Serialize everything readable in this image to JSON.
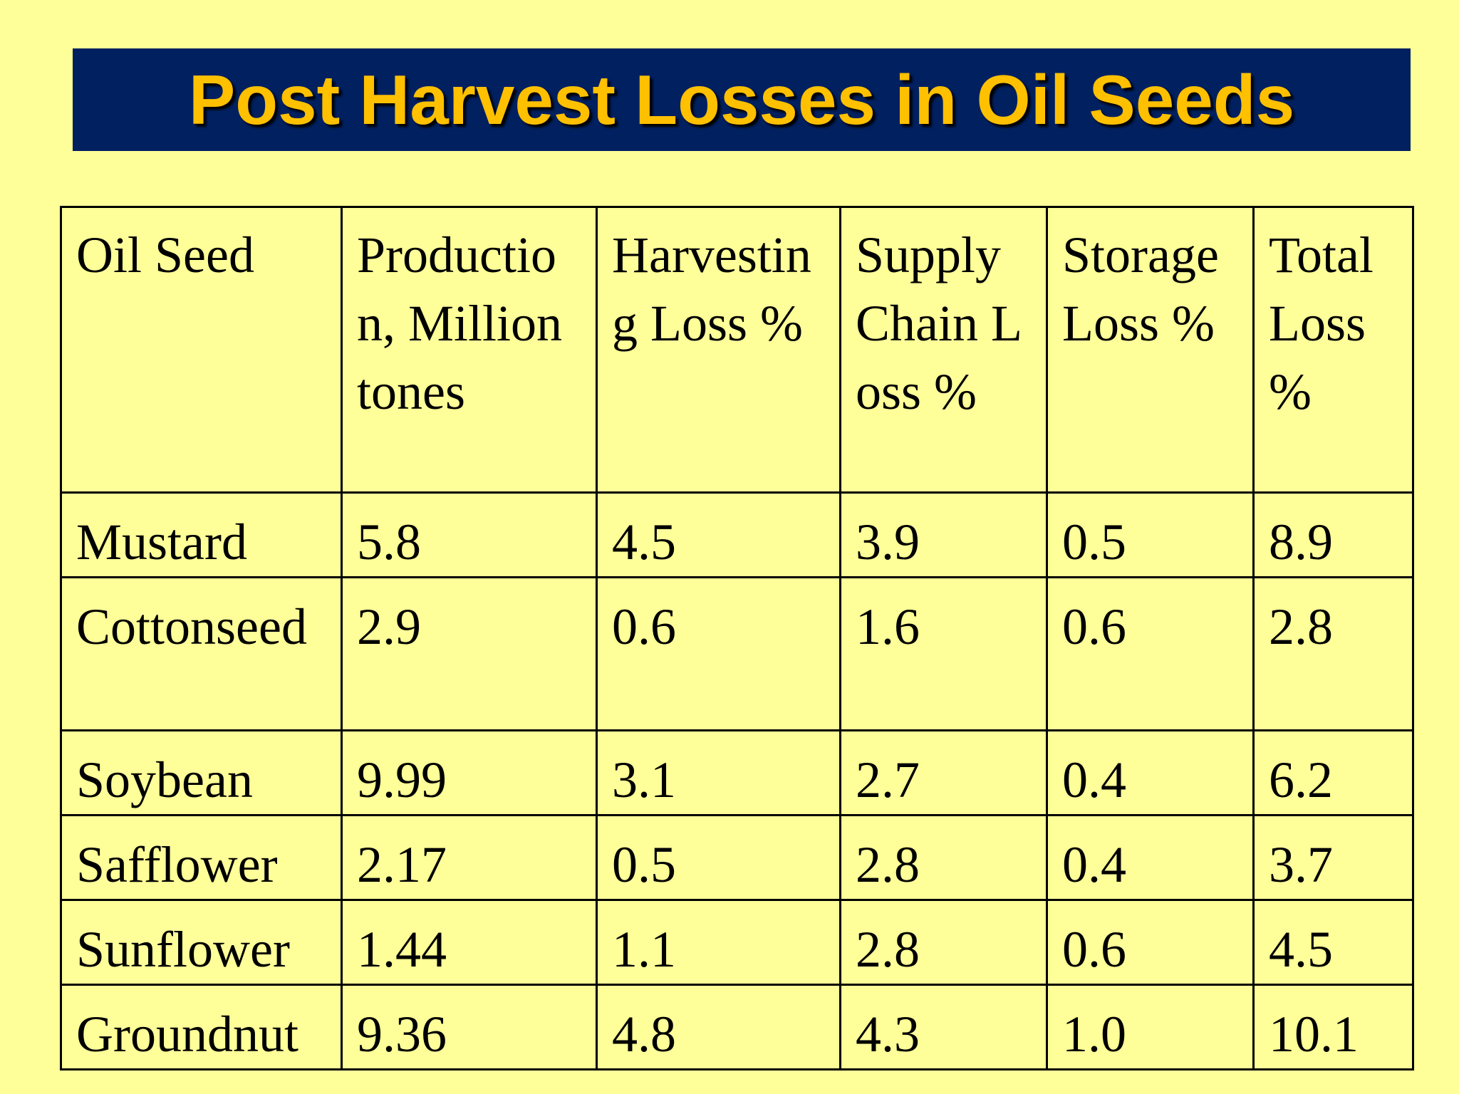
{
  "slide": {
    "title": "Post Harvest Losses in Oil Seeds",
    "background_color": "#FFFF99",
    "title_bar_color": "#002060",
    "title_text_color": "#FFC000"
  },
  "table": {
    "headers": [
      "Oil Seed",
      "Production, Million tones",
      "Harvesting Loss %",
      "Supply Chain Loss %",
      "Storage Loss %",
      "Total Loss %"
    ],
    "rows": [
      [
        "Mustard",
        "5.8",
        "4.5",
        "3.9",
        "0.5",
        "8.9"
      ],
      [
        "Cottonseed",
        "2.9",
        "0.6",
        "1.6",
        "0.6",
        "2.8"
      ],
      [
        "Soybean",
        "9.99",
        "3.1",
        "2.7",
        "0.4",
        "6.2"
      ],
      [
        "Safflower",
        "2.17",
        "0.5",
        "2.8",
        "0.4",
        "3.7"
      ],
      [
        "Sunflower",
        "1.44",
        "1.1",
        "2.8",
        "0.6",
        "4.5"
      ],
      [
        "Groundnut",
        "9.36",
        "4.8",
        "4.3",
        "1.0",
        "10.1"
      ]
    ]
  }
}
